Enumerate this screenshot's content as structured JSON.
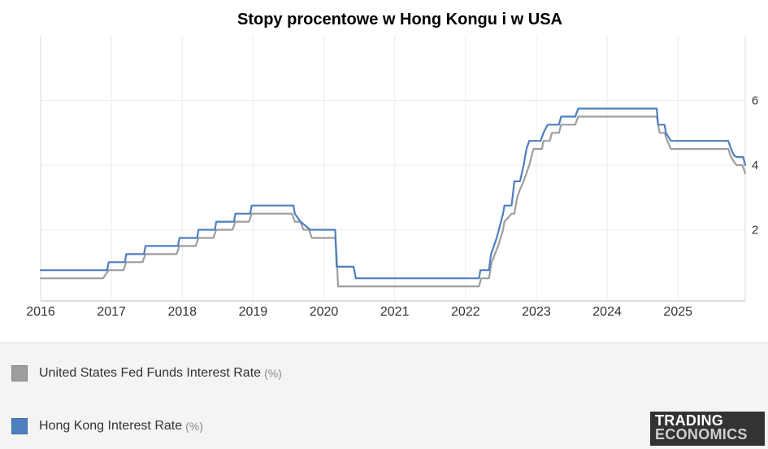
{
  "chart_data": {
    "type": "line",
    "title": "Stopy procentowe w Hong Kongu i w USA",
    "xlabel": "",
    "ylabel": "",
    "x_ticks": [
      "2016",
      "2017",
      "2018",
      "2019",
      "2020",
      "2021",
      "2022",
      "2023",
      "2024",
      "2025"
    ],
    "y_ticks": [
      "2",
      "4",
      "6"
    ],
    "y_tick_values": [
      2,
      4,
      6
    ],
    "xlim": [
      2016.0,
      2025.95
    ],
    "ylim": [
      -0.2,
      8.0
    ],
    "grid": true,
    "y_axis_position": "right",
    "series": [
      {
        "name": "United States Fed Funds Interest Rate",
        "unit": "(%)",
        "color": "#9e9e9e",
        "points": [
          [
            2016.0,
            0.5
          ],
          [
            2016.88,
            0.5
          ],
          [
            2016.96,
            0.75
          ],
          [
            2017.17,
            0.75
          ],
          [
            2017.21,
            1.0
          ],
          [
            2017.44,
            1.0
          ],
          [
            2017.48,
            1.25
          ],
          [
            2017.92,
            1.25
          ],
          [
            2017.96,
            1.5
          ],
          [
            2018.19,
            1.5
          ],
          [
            2018.23,
            1.75
          ],
          [
            2018.44,
            1.75
          ],
          [
            2018.48,
            2.0
          ],
          [
            2018.71,
            2.0
          ],
          [
            2018.75,
            2.25
          ],
          [
            2018.94,
            2.25
          ],
          [
            2018.98,
            2.5
          ],
          [
            2019.55,
            2.5
          ],
          [
            2019.59,
            2.25
          ],
          [
            2019.67,
            2.25
          ],
          [
            2019.71,
            2.0
          ],
          [
            2019.79,
            2.0
          ],
          [
            2019.83,
            1.75
          ],
          [
            2020.16,
            1.75
          ],
          [
            2020.18,
            1.25
          ],
          [
            2020.2,
            0.25
          ],
          [
            2022.19,
            0.25
          ],
          [
            2022.22,
            0.5
          ],
          [
            2022.33,
            0.5
          ],
          [
            2022.37,
            1.0
          ],
          [
            2022.46,
            1.5
          ],
          [
            2022.53,
            2.0
          ],
          [
            2022.55,
            2.25
          ],
          [
            2022.65,
            2.5
          ],
          [
            2022.69,
            2.5
          ],
          [
            2022.73,
            3.0
          ],
          [
            2022.77,
            3.25
          ],
          [
            2022.82,
            3.5
          ],
          [
            2022.86,
            3.75
          ],
          [
            2022.9,
            4.0
          ],
          [
            2022.93,
            4.25
          ],
          [
            2022.96,
            4.5
          ],
          [
            2023.08,
            4.5
          ],
          [
            2023.1,
            4.75
          ],
          [
            2023.19,
            4.75
          ],
          [
            2023.22,
            5.0
          ],
          [
            2023.32,
            5.0
          ],
          [
            2023.35,
            5.25
          ],
          [
            2023.55,
            5.25
          ],
          [
            2023.59,
            5.5
          ],
          [
            2024.7,
            5.5
          ],
          [
            2024.74,
            5.0
          ],
          [
            2024.81,
            5.0
          ],
          [
            2024.85,
            4.75
          ],
          [
            2024.9,
            4.5
          ],
          [
            2025.71,
            4.5
          ],
          [
            2025.75,
            4.25
          ],
          [
            2025.79,
            4.1
          ],
          [
            2025.83,
            4.0
          ],
          [
            2025.91,
            4.0
          ],
          [
            2025.95,
            3.75
          ]
        ]
      },
      {
        "name": "Hong Kong Interest Rate",
        "unit": "(%)",
        "color": "#4d7fc0",
        "points": [
          [
            2016.0,
            0.75
          ],
          [
            2016.94,
            0.75
          ],
          [
            2016.96,
            1.0
          ],
          [
            2017.19,
            1.0
          ],
          [
            2017.21,
            1.25
          ],
          [
            2017.46,
            1.25
          ],
          [
            2017.48,
            1.5
          ],
          [
            2017.94,
            1.5
          ],
          [
            2017.96,
            1.75
          ],
          [
            2018.21,
            1.75
          ],
          [
            2018.23,
            2.0
          ],
          [
            2018.46,
            2.0
          ],
          [
            2018.48,
            2.25
          ],
          [
            2018.73,
            2.25
          ],
          [
            2018.75,
            2.5
          ],
          [
            2018.96,
            2.5
          ],
          [
            2018.98,
            2.75
          ],
          [
            2019.57,
            2.75
          ],
          [
            2019.59,
            2.5
          ],
          [
            2019.67,
            2.25
          ],
          [
            2019.81,
            2.0
          ],
          [
            2020.16,
            2.0
          ],
          [
            2020.18,
            0.86
          ],
          [
            2020.42,
            0.86
          ],
          [
            2020.45,
            0.5
          ],
          [
            2022.19,
            0.5
          ],
          [
            2022.21,
            0.75
          ],
          [
            2022.33,
            0.75
          ],
          [
            2022.36,
            1.25
          ],
          [
            2022.44,
            1.75
          ],
          [
            2022.53,
            2.5
          ],
          [
            2022.55,
            2.75
          ],
          [
            2022.65,
            2.75
          ],
          [
            2022.69,
            3.5
          ],
          [
            2022.77,
            3.5
          ],
          [
            2022.82,
            4.0
          ],
          [
            2022.86,
            4.5
          ],
          [
            2022.9,
            4.75
          ],
          [
            2023.06,
            4.75
          ],
          [
            2023.1,
            5.0
          ],
          [
            2023.16,
            5.25
          ],
          [
            2023.32,
            5.25
          ],
          [
            2023.35,
            5.5
          ],
          [
            2023.55,
            5.5
          ],
          [
            2023.59,
            5.75
          ],
          [
            2024.7,
            5.75
          ],
          [
            2024.72,
            5.25
          ],
          [
            2024.81,
            5.25
          ],
          [
            2024.83,
            5.0
          ],
          [
            2024.9,
            4.75
          ],
          [
            2025.71,
            4.75
          ],
          [
            2025.75,
            4.5
          ],
          [
            2025.79,
            4.3
          ],
          [
            2025.83,
            4.25
          ],
          [
            2025.92,
            4.25
          ],
          [
            2025.95,
            4.0
          ]
        ]
      }
    ]
  },
  "legend": {
    "items": [
      {
        "label": "United States Fed Funds Interest Rate",
        "unit": "(%)",
        "color": "#9e9e9e"
      },
      {
        "label": "Hong Kong Interest Rate",
        "unit": "(%)",
        "color": "#4d7fc0"
      }
    ]
  },
  "logo": {
    "line1": "TRADING",
    "line2": "ECONOMICS"
  }
}
